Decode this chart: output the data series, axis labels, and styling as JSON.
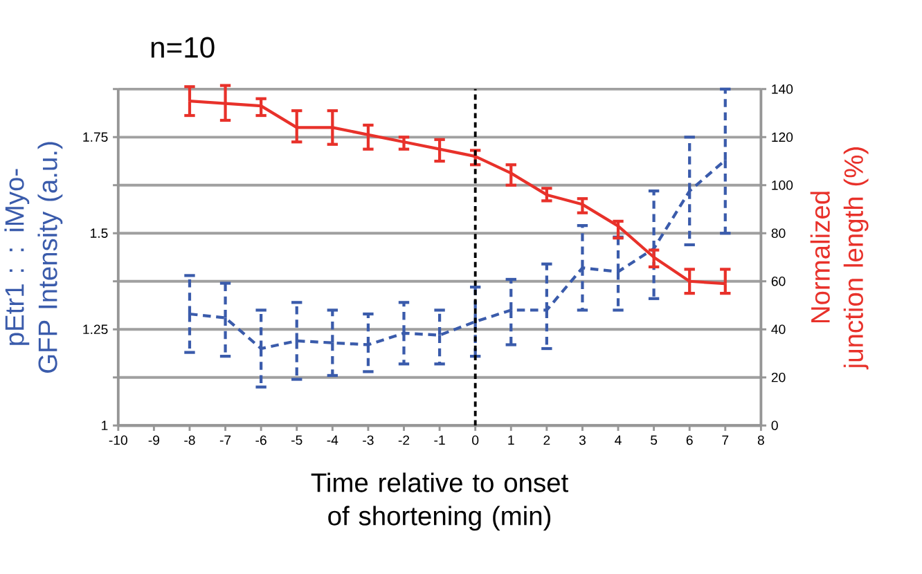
{
  "chart_data": {
    "type": "line",
    "title": "n=10",
    "xlabel": "Time relative to onset of shortening (min)",
    "ylabel": "pEtr1 : : iMyo-GFP Intensity (a.u.)",
    "y2label": "Normalized junction length (%)",
    "x": [
      -8,
      -7,
      -6,
      -5,
      -4,
      -3,
      -2,
      -1,
      0,
      1,
      2,
      3,
      4,
      5,
      6,
      7
    ],
    "xlim": [
      -10,
      8
    ],
    "xticks": [
      -10,
      -9,
      -8,
      -7,
      -6,
      -5,
      -4,
      -3,
      -2,
      -1,
      0,
      1,
      2,
      3,
      4,
      5,
      6,
      7,
      8
    ],
    "ylim": [
      1,
      1.875
    ],
    "yticks": [
      1,
      {
        "value": 1.125,
        "label": null
      },
      1.25,
      {
        "value": 1.375,
        "label": null
      },
      1.5,
      {
        "value": 1.625,
        "label": null
      },
      1.75,
      {
        "value": 1.875,
        "label": null
      }
    ],
    "y2lim": [
      0,
      140
    ],
    "y2ticks": [
      0,
      20,
      40,
      60,
      80,
      100,
      120,
      140
    ],
    "grid": "y",
    "series": [
      {
        "color": "#3a5bab",
        "line_style": "dashed",
        "values": [
          1.29,
          1.28,
          1.2,
          1.22,
          1.215,
          1.21,
          1.24,
          1.235,
          1.27,
          1.3,
          1.3,
          1.41,
          1.4,
          1.46,
          1.61,
          1.69
        ],
        "errors": [
          [
            1.19,
            1.39
          ],
          [
            1.18,
            1.37
          ],
          [
            1.1,
            1.3
          ],
          [
            1.12,
            1.32
          ],
          [
            1.13,
            1.3
          ],
          [
            1.14,
            1.29
          ],
          [
            1.16,
            1.32
          ],
          [
            1.16,
            1.3
          ],
          [
            1.18,
            1.36
          ],
          [
            1.21,
            1.38
          ],
          [
            1.2,
            1.42
          ],
          [
            1.3,
            1.52
          ],
          [
            1.3,
            1.49
          ],
          [
            1.33,
            1.61
          ],
          [
            1.47,
            1.75
          ],
          [
            1.5,
            1.875
          ]
        ]
      },
      {
        "color": "#e8312a",
        "line_style": "solid",
        "axis": "y2",
        "values": [
          135,
          134,
          133,
          124,
          124,
          121,
          118,
          115,
          112,
          105,
          96,
          92,
          83,
          70,
          60,
          59
        ],
        "errors": [
          [
            129,
            141
          ],
          [
            127,
            141.5
          ],
          [
            129,
            136
          ],
          [
            118,
            131
          ],
          [
            117,
            131
          ],
          [
            115,
            125
          ],
          [
            115,
            120
          ],
          [
            110,
            119
          ],
          [
            108.5,
            114.5
          ],
          [
            100,
            108.5
          ],
          [
            93.5,
            98.7
          ],
          [
            88.5,
            94.4
          ],
          [
            78,
            85
          ],
          [
            66,
            73
          ],
          [
            55,
            65
          ],
          [
            55,
            65
          ]
        ]
      }
    ],
    "ref_lines": [
      {
        "axis": "x",
        "value": 0,
        "color": "#000000",
        "line_style": "dashed"
      }
    ]
  }
}
